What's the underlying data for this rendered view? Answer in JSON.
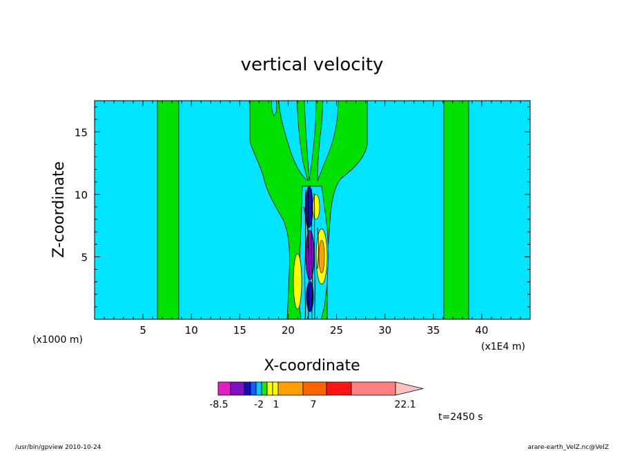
{
  "chart_data": {
    "type": "heatmap",
    "title": "vertical velocity",
    "xlabel": "X-coordinate",
    "ylabel": "Z-coordinate",
    "x_unit_left": "(x1000 m)",
    "x_unit_right": "(x1E4 m)",
    "xlim": [
      0,
      45
    ],
    "ylim": [
      0,
      17.5
    ],
    "xticks": [
      5,
      10,
      15,
      20,
      25,
      30,
      35,
      40
    ],
    "yticks": [
      5,
      10,
      15
    ],
    "colorbar": {
      "colors": [
        "#e020c0",
        "#8010c0",
        "#1010c0",
        "#1060ff",
        "#00c8ff",
        "#20e020",
        "#ffff00",
        "#ffff00",
        "#ffa000",
        "#ff6400",
        "#ff1414",
        "#ff8080",
        "#ffc0c0"
      ],
      "labels": [
        "-8.5",
        "-2",
        "1",
        "7",
        "22.1"
      ]
    },
    "background_color": "#00e5ff",
    "contour_regions": [
      {
        "name": "positive band",
        "x_range": [
          6.5,
          8.5
        ],
        "z_range": [
          0,
          17.5
        ],
        "color": "#00e000"
      },
      {
        "name": "positive band",
        "x_range": [
          36.2,
          38.7
        ],
        "z_range": [
          0,
          17.5
        ],
        "color": "#00e000"
      },
      {
        "name": "central plume",
        "x_range": [
          16,
          28
        ],
        "z_range": [
          0,
          17.5
        ],
        "color": "#00e000"
      }
    ],
    "grid": false
  },
  "annotations": {
    "time": "t=2450 s",
    "footer_left": "/usr/bin/gpview   2010-10-24",
    "footer_right": "arare-earth_VelZ.nc@VelZ"
  }
}
